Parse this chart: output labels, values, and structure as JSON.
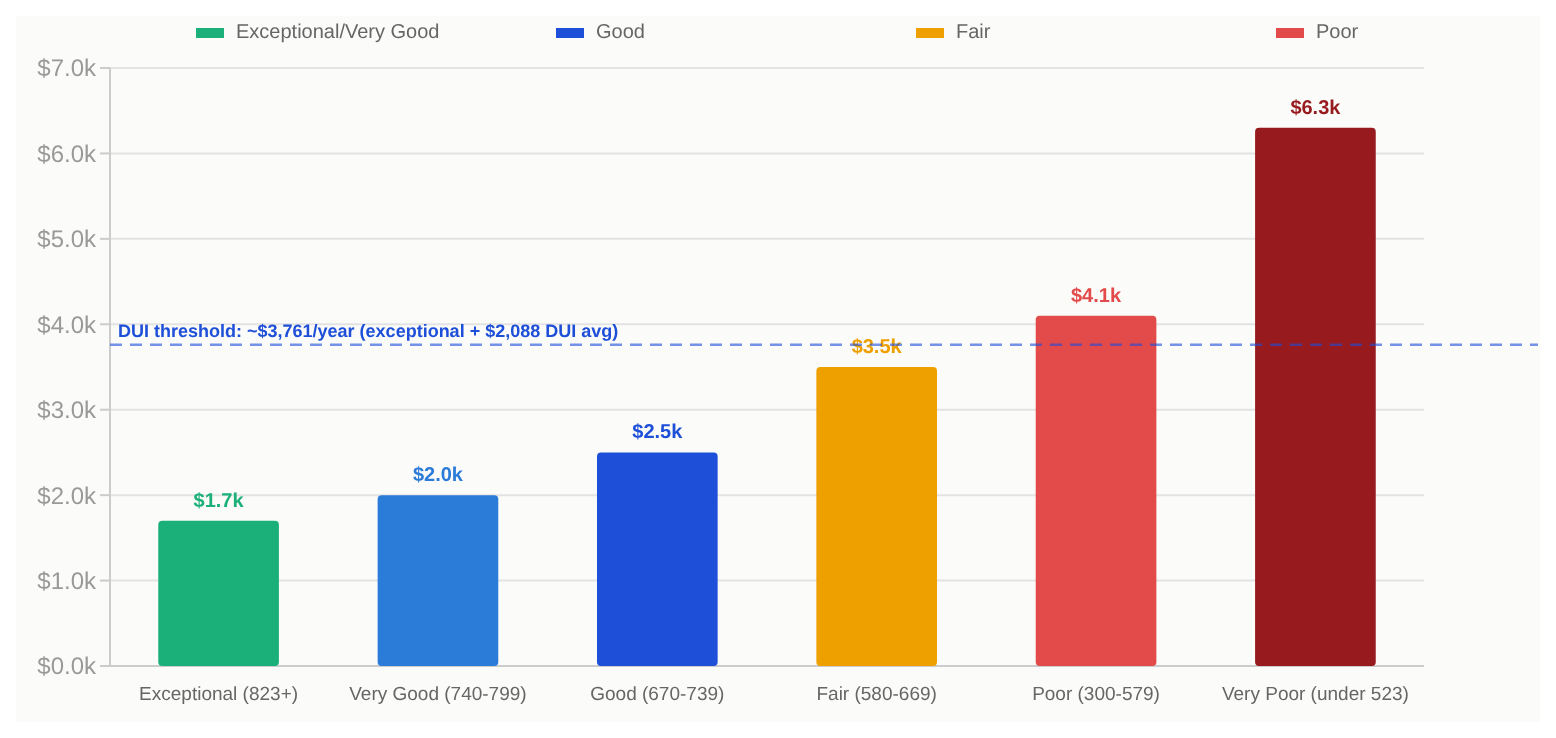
{
  "chart_data": {
    "type": "bar",
    "categories": [
      "Exceptional (823+)",
      "Very Good (740-799)",
      "Good (670-739)",
      "Fair (580-669)",
      "Poor (300-579)",
      "Very Poor (under 523)"
    ],
    "series": [
      {
        "name": "Exceptional/Very Good",
        "color": "#1bb07a",
        "colors": [
          "#1bb07a",
          "#2b7bd9",
          null,
          null,
          null,
          null
        ],
        "values": [
          1.7,
          2.0,
          null,
          null,
          null,
          null
        ],
        "value_labels": [
          "$1.7k",
          "$2.0k",
          null,
          null,
          null,
          null
        ]
      },
      {
        "name": "Good",
        "color": "#1d4fd8",
        "values": [
          null,
          null,
          2.5,
          null,
          null,
          null
        ],
        "value_labels": [
          null,
          null,
          "$2.5k",
          null,
          null,
          null
        ]
      },
      {
        "name": "Fair",
        "color": "#eea000",
        "values": [
          null,
          null,
          null,
          3.5,
          null,
          null
        ],
        "value_labels": [
          null,
          null,
          null,
          "$3.5k",
          null,
          null
        ]
      },
      {
        "name": "Poor",
        "color": "#e34a4a",
        "colors": [
          null,
          null,
          null,
          null,
          "#e34a4a",
          "#971b1e"
        ],
        "values": [
          null,
          null,
          null,
          null,
          4.1,
          6.3
        ],
        "value_labels": [
          null,
          null,
          null,
          null,
          "$4.1k",
          "$6.3k"
        ]
      }
    ],
    "ylim": [
      0,
      7
    ],
    "yticks": [
      {
        "value": 0,
        "label": "$0.0k"
      },
      {
        "value": 1,
        "label": "$1.0k"
      },
      {
        "value": 2,
        "label": "$2.0k"
      },
      {
        "value": 3,
        "label": "$3.0k"
      },
      {
        "value": 4,
        "label": "$4.0k"
      },
      {
        "value": 5,
        "label": "$5.0k"
      },
      {
        "value": 6,
        "label": "$6.0k"
      },
      {
        "value": 7,
        "label": "$7.0k"
      }
    ],
    "grid": "y",
    "legend": "top",
    "ref_lines": [
      {
        "axis": "y",
        "value": 3.761,
        "label": "DUI threshold: ~$3,761/year (exceptional + $2,088 DUI avg)",
        "color": "#1d4fd8",
        "line_style": "dashed"
      }
    ]
  }
}
